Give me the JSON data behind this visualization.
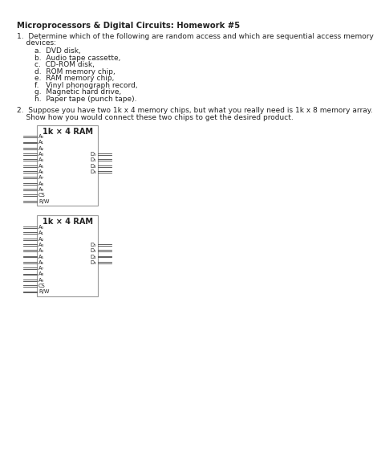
{
  "title": "Microprocessors & Digital Circuits: Homework #5",
  "q1_intro": "1.  Determine which of the following are random access and which are sequential access memory",
  "q1_intro2": "    devices:",
  "q1_items": [
    "a.  DVD disk,",
    "b.  Audio tape cassette,",
    "c.  CD-ROM disk,",
    "d.  ROM memory chip,",
    "e.  RAM memory chip,",
    "f.   Vinyl phonograph record,",
    "g.  Magnetic hard drive,",
    "h.  Paper tape (punch tape)."
  ],
  "q2_line1": "2.  Suppose you have two 1k x 4 memory chips, but what you really need is 1k x 8 memory array.",
  "q2_line2": "    Show how you would connect these two chips to get the desired product.",
  "chip_label": "1k × 4 RAM",
  "left_pins_addr": [
    "A₀",
    "A₁",
    "A₂",
    "A₃",
    "A₄",
    "A₅",
    "A₆",
    "A₇",
    "A₈",
    "A₉"
  ],
  "left_pins_ctrl": [
    "CS",
    "R/W"
  ],
  "right_pins": [
    "D₀",
    "D₁",
    "D₂",
    "D₃"
  ],
  "bg_color": "#ffffff",
  "text_color": "#222222",
  "box_color": "#999999"
}
